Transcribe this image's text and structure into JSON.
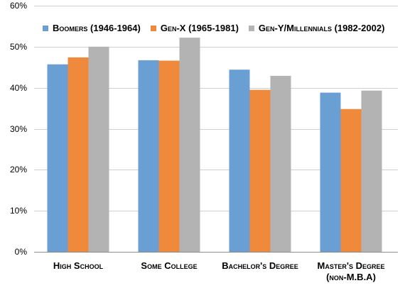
{
  "chart_data": {
    "type": "bar",
    "categories": [
      "High School",
      "Some College",
      "Bachelor's Degree",
      "Master's Degree\n(non-M.B.A)"
    ],
    "series": [
      {
        "name": "Boomers (1946-1964)",
        "color": "#6a9fd4",
        "values": [
          45.7,
          46.7,
          44.4,
          38.8
        ]
      },
      {
        "name": "Gen-X (1965-1981)",
        "color": "#ef8a3c",
        "values": [
          47.4,
          46.6,
          39.5,
          34.8
        ]
      },
      {
        "name": "Gen-Y/Millennials (1982-2002)",
        "color": "#b3b3b3",
        "values": [
          50.0,
          52.2,
          42.9,
          39.3
        ]
      }
    ],
    "yticks": [
      "0%",
      "10%",
      "20%",
      "30%",
      "40%",
      "50%",
      "60%"
    ],
    "ylim": [
      0,
      60
    ],
    "grid": true,
    "legend_position": "top-left",
    "title": "",
    "xlabel": "",
    "ylabel": ""
  }
}
